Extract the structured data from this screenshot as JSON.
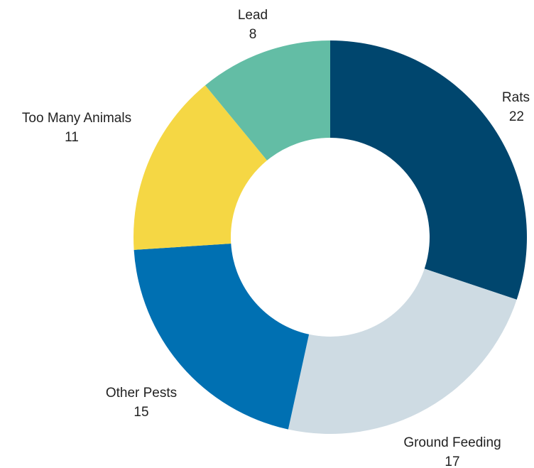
{
  "chart_data": {
    "type": "pie",
    "donut": true,
    "legend": "none",
    "slices": [
      {
        "label": "Rats",
        "value": 22,
        "color": "#00466e"
      },
      {
        "label": "Ground Feeding",
        "value": 17,
        "color": "#cedbe3"
      },
      {
        "label": "Other Pests",
        "value": 15,
        "color": "#0070b2"
      },
      {
        "label": "Too Many Animals",
        "value": 11,
        "color": "#f5d744"
      },
      {
        "label": "Lead",
        "value": 8,
        "color": "#63bda5"
      }
    ]
  }
}
